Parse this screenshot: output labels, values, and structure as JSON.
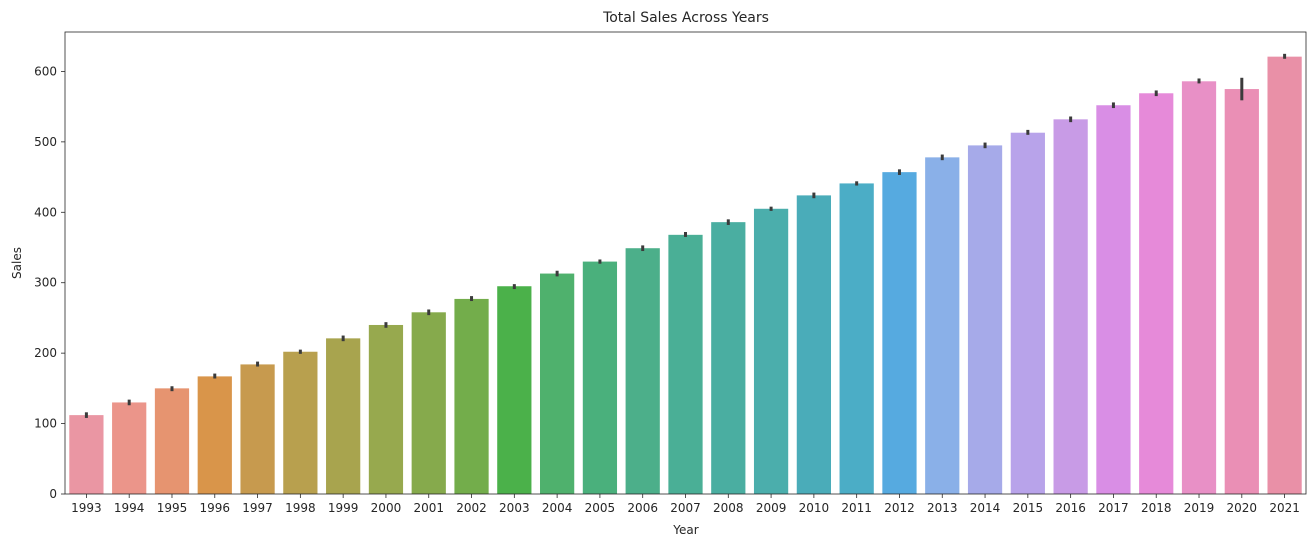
{
  "chart_data": {
    "type": "bar",
    "title": "Total Sales Across Years",
    "xlabel": "Year",
    "ylabel": "Sales",
    "ylim": [
      0,
      656
    ],
    "yticks": [
      0,
      100,
      200,
      300,
      400,
      500,
      600
    ],
    "grid": false,
    "legend": "none",
    "categories": [
      "1993",
      "1994",
      "1995",
      "1996",
      "1997",
      "1998",
      "1999",
      "2000",
      "2001",
      "2002",
      "2003",
      "2004",
      "2005",
      "2006",
      "2007",
      "2008",
      "2009",
      "2010",
      "2011",
      "2012",
      "2013",
      "2014",
      "2015",
      "2016",
      "2017",
      "2018",
      "2019",
      "2020",
      "2021"
    ],
    "values": [
      112,
      130,
      150,
      167,
      184,
      202,
      221,
      240,
      258,
      277,
      295,
      313,
      330,
      349,
      368,
      386,
      405,
      424,
      441,
      457,
      478,
      495,
      513,
      532,
      552,
      569,
      586,
      575,
      621
    ],
    "error_low": [
      108,
      126,
      146,
      164,
      181,
      199,
      217,
      236,
      254,
      274,
      291,
      309,
      327,
      345,
      365,
      382,
      402,
      420,
      438,
      453,
      474,
      491,
      510,
      528,
      548,
      565,
      583,
      559,
      618
    ],
    "error_high": [
      116,
      134,
      153,
      171,
      188,
      205,
      225,
      244,
      262,
      281,
      298,
      317,
      333,
      353,
      372,
      390,
      408,
      428,
      444,
      461,
      482,
      499,
      517,
      536,
      556,
      573,
      590,
      591,
      625
    ],
    "colors": [
      "#ea96a3",
      "#eb958a",
      "#e69470",
      "#d9954a",
      "#c79a4e",
      "#b8a04e",
      "#a8a44e",
      "#97a94e",
      "#86aa4c",
      "#73ad4b",
      "#4bb14a",
      "#4fb16d",
      "#4ab07c",
      "#4caf8a",
      "#4aaf96",
      "#4aaea1",
      "#4baeac",
      "#4aacb9",
      "#4badc6",
      "#56aae0",
      "#8ab0e8",
      "#a6aae9",
      "#b8a3ea",
      "#c89be6",
      "#d98ee5",
      "#e68ad9",
      "#e890c6",
      "#ea8fb5",
      "#e990a7"
    ],
    "error_color": "#3b3b3b"
  }
}
